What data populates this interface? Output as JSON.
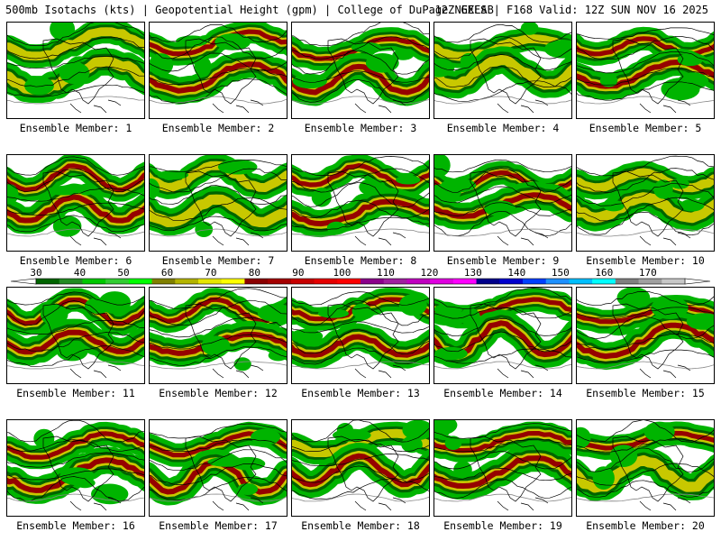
{
  "header": {
    "left_title": "500mb Isotachs (kts) | Geopotential Height (gpm) | College of DuPage NEXLAB",
    "right_title": "12Z GEFS | F168 Valid: 12Z SUN NOV 16 2025"
  },
  "members": [
    {
      "label": "Ensemble Member: 1"
    },
    {
      "label": "Ensemble Member: 2"
    },
    {
      "label": "Ensemble Member: 3"
    },
    {
      "label": "Ensemble Member: 4"
    },
    {
      "label": "Ensemble Member: 5"
    },
    {
      "label": "Ensemble Member: 6"
    },
    {
      "label": "Ensemble Member: 7"
    },
    {
      "label": "Ensemble Member: 8"
    },
    {
      "label": "Ensemble Member: 9"
    },
    {
      "label": "Ensemble Member: 10"
    },
    {
      "label": "Ensemble Member: 11"
    },
    {
      "label": "Ensemble Member: 12"
    },
    {
      "label": "Ensemble Member: 13"
    },
    {
      "label": "Ensemble Member: 14"
    },
    {
      "label": "Ensemble Member: 15"
    },
    {
      "label": "Ensemble Member: 16"
    },
    {
      "label": "Ensemble Member: 17"
    },
    {
      "label": "Ensemble Member: 18"
    },
    {
      "label": "Ensemble Member: 19"
    },
    {
      "label": "Ensemble Member: 20"
    }
  ],
  "colorbar": {
    "ticks": [
      "30",
      "40",
      "50",
      "60",
      "70",
      "80",
      "90",
      "100",
      "110",
      "120",
      "130",
      "140",
      "150",
      "160",
      "170"
    ],
    "colors": [
      "#006400",
      "#228b22",
      "#00c800",
      "#32cd32",
      "#00ff00",
      "#808000",
      "#b4b400",
      "#e6e600",
      "#ffff00",
      "#8b0000",
      "#a50000",
      "#c80000",
      "#e60000",
      "#ff0000",
      "#8b008b",
      "#a020a0",
      "#c000c0",
      "#e000e0",
      "#ff00ff",
      "#00008b",
      "#0000cd",
      "#0040ff",
      "#1e90ff",
      "#00bfff",
      "#00ffff",
      "#808080",
      "#a0a0a0",
      "#c8c8c8"
    ]
  },
  "map_colors": {
    "green": "#00b400",
    "dark_green": "#006400",
    "yellow": "#c8c800",
    "dark_red": "#960000",
    "contour": "#000000",
    "coast": "#000000"
  }
}
